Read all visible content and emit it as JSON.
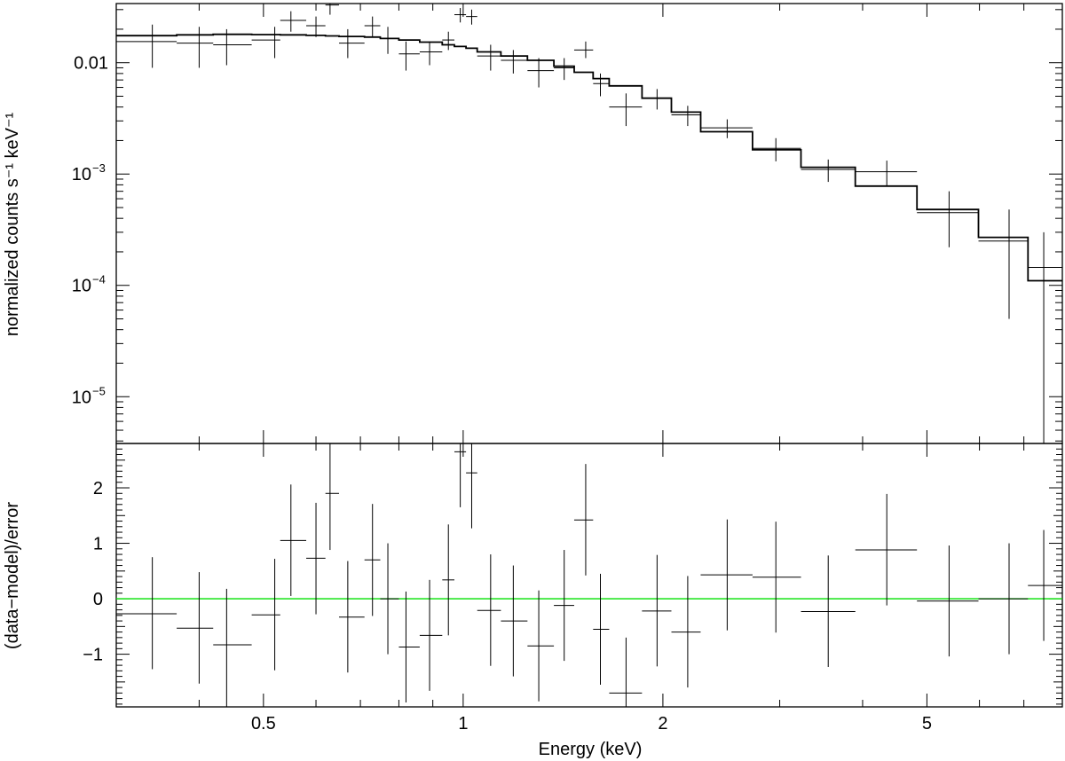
{
  "chart_data": [
    {
      "type": "scatter",
      "panel": "spectrum",
      "xlabel": "Energy (keV)",
      "ylabel": "normalized counts s⁻¹ keV⁻¹",
      "xscale": "log",
      "yscale": "log",
      "xlim": [
        0.3,
        8.0
      ],
      "ylim": [
        3.8e-06,
        0.034
      ],
      "yticks": [
        {
          "value": 0.01,
          "label": "0.01",
          "exp": ""
        },
        {
          "value": 0.001,
          "label": "10",
          "exp": "−3"
        },
        {
          "value": 0.0001,
          "label": "10",
          "exp": "−4"
        },
        {
          "value": 1e-05,
          "label": "10",
          "exp": "−5"
        }
      ],
      "series": [
        {
          "name": "",
          "kind": "data",
          "color": "#000000",
          "points": [
            {
              "x": 0.34,
              "xlo": 0.3,
              "xhi": 0.37,
              "y": 0.0155,
              "ylo": 0.009,
              "yhi": 0.022
            },
            {
              "x": 0.4,
              "xlo": 0.37,
              "xhi": 0.42,
              "y": 0.015,
              "ylo": 0.009,
              "yhi": 0.021
            },
            {
              "x": 0.44,
              "xlo": 0.42,
              "xhi": 0.48,
              "y": 0.0145,
              "ylo": 0.0095,
              "yhi": 0.02
            },
            {
              "x": 0.52,
              "xlo": 0.48,
              "xhi": 0.53,
              "y": 0.016,
              "ylo": 0.011,
              "yhi": 0.021
            },
            {
              "x": 0.55,
              "xlo": 0.53,
              "xhi": 0.58,
              "y": 0.024,
              "ylo": 0.019,
              "yhi": 0.029
            },
            {
              "x": 0.6,
              "xlo": 0.58,
              "xhi": 0.62,
              "y": 0.0215,
              "ylo": 0.017,
              "yhi": 0.026
            },
            {
              "x": 0.63,
              "xlo": 0.62,
              "xhi": 0.65,
              "y": 0.033,
              "ylo": 0.027,
              "yhi": 0.04
            },
            {
              "x": 0.67,
              "xlo": 0.65,
              "xhi": 0.71,
              "y": 0.015,
              "ylo": 0.011,
              "yhi": 0.02
            },
            {
              "x": 0.73,
              "xlo": 0.71,
              "xhi": 0.75,
              "y": 0.0215,
              "ylo": 0.017,
              "yhi": 0.026
            },
            {
              "x": 0.77,
              "xlo": 0.75,
              "xhi": 0.8,
              "y": 0.0165,
              "ylo": 0.012,
              "yhi": 0.021
            },
            {
              "x": 0.82,
              "xlo": 0.8,
              "xhi": 0.86,
              "y": 0.012,
              "ylo": 0.0085,
              "yhi": 0.0155
            },
            {
              "x": 0.89,
              "xlo": 0.86,
              "xhi": 0.93,
              "y": 0.0125,
              "ylo": 0.0095,
              "yhi": 0.0155
            },
            {
              "x": 0.95,
              "xlo": 0.93,
              "xhi": 0.97,
              "y": 0.016,
              "ylo": 0.013,
              "yhi": 0.019
            },
            {
              "x": 0.99,
              "xlo": 0.97,
              "xhi": 1.01,
              "y": 0.027,
              "ylo": 0.023,
              "yhi": 0.031
            },
            {
              "x": 1.03,
              "xlo": 1.01,
              "xhi": 1.05,
              "y": 0.026,
              "ylo": 0.022,
              "yhi": 0.03
            },
            {
              "x": 1.1,
              "xlo": 1.05,
              "xhi": 1.14,
              "y": 0.0115,
              "ylo": 0.0085,
              "yhi": 0.0145
            },
            {
              "x": 1.19,
              "xlo": 1.14,
              "xhi": 1.25,
              "y": 0.0105,
              "ylo": 0.008,
              "yhi": 0.013
            },
            {
              "x": 1.3,
              "xlo": 1.25,
              "xhi": 1.37,
              "y": 0.0085,
              "ylo": 0.006,
              "yhi": 0.011
            },
            {
              "x": 1.42,
              "xlo": 1.37,
              "xhi": 1.47,
              "y": 0.009,
              "ylo": 0.007,
              "yhi": 0.011
            },
            {
              "x": 1.53,
              "xlo": 1.47,
              "xhi": 1.57,
              "y": 0.013,
              "ylo": 0.011,
              "yhi": 0.0155
            },
            {
              "x": 1.61,
              "xlo": 1.57,
              "xhi": 1.66,
              "y": 0.0065,
              "ylo": 0.005,
              "yhi": 0.008
            },
            {
              "x": 1.76,
              "xlo": 1.66,
              "xhi": 1.86,
              "y": 0.004,
              "ylo": 0.0027,
              "yhi": 0.0053
            },
            {
              "x": 1.96,
              "xlo": 1.86,
              "xhi": 2.06,
              "y": 0.0048,
              "ylo": 0.0038,
              "yhi": 0.0058
            },
            {
              "x": 2.18,
              "xlo": 2.06,
              "xhi": 2.28,
              "y": 0.0034,
              "ylo": 0.0027,
              "yhi": 0.0041
            },
            {
              "x": 2.5,
              "xlo": 2.28,
              "xhi": 2.73,
              "y": 0.0026,
              "ylo": 0.0021,
              "yhi": 0.0031
            },
            {
              "x": 2.96,
              "xlo": 2.73,
              "xhi": 3.23,
              "y": 0.0017,
              "ylo": 0.0013,
              "yhi": 0.0021
            },
            {
              "x": 3.55,
              "xlo": 3.23,
              "xhi": 3.9,
              "y": 0.0011,
              "ylo": 0.00085,
              "yhi": 0.00135
            },
            {
              "x": 4.35,
              "xlo": 3.9,
              "xhi": 4.83,
              "y": 0.00105,
              "ylo": 0.00078,
              "yhi": 0.00132
            },
            {
              "x": 5.4,
              "xlo": 4.83,
              "xhi": 5.98,
              "y": 0.00045,
              "ylo": 0.00022,
              "yhi": 0.0007
            },
            {
              "x": 6.65,
              "xlo": 5.98,
              "xhi": 7.1,
              "y": 0.00025,
              "ylo": 5e-05,
              "yhi": 0.00048
            },
            {
              "x": 7.5,
              "xlo": 7.1,
              "xhi": 8.0,
              "y": 0.000145,
              "ylo": 3.8e-06,
              "yhi": 0.0003
            }
          ]
        },
        {
          "name": "",
          "kind": "model-step",
          "color": "#000000",
          "edges": [
            0.3,
            0.37,
            0.42,
            0.48,
            0.53,
            0.58,
            0.62,
            0.65,
            0.71,
            0.75,
            0.8,
            0.86,
            0.93,
            0.97,
            1.01,
            1.05,
            1.14,
            1.25,
            1.37,
            1.47,
            1.57,
            1.66,
            1.86,
            2.06,
            2.28,
            2.73,
            3.23,
            3.9,
            4.83,
            5.98,
            7.1,
            8.0
          ],
          "values": [
            0.0175,
            0.0178,
            0.018,
            0.0179,
            0.0178,
            0.0176,
            0.0174,
            0.0172,
            0.017,
            0.0165,
            0.016,
            0.0153,
            0.0145,
            0.014,
            0.0135,
            0.0125,
            0.0115,
            0.0105,
            0.0093,
            0.0082,
            0.0072,
            0.0062,
            0.0048,
            0.0036,
            0.0024,
            0.00165,
            0.00115,
            0.00078,
            0.00048,
            0.00027,
            0.00011
          ]
        }
      ]
    },
    {
      "type": "scatter",
      "panel": "residuals",
      "xlabel": "Energy (keV)",
      "ylabel": "(data−model)/error",
      "xscale": "log",
      "xlim": [
        0.3,
        8.0
      ],
      "ylim": [
        -1.95,
        2.8
      ],
      "xticks": [
        {
          "value": 0.5,
          "label": "0.5"
        },
        {
          "value": 1,
          "label": "1"
        },
        {
          "value": 2,
          "label": "2"
        },
        {
          "value": 5,
          "label": "5"
        }
      ],
      "yticks": [
        {
          "value": 2,
          "label": "2"
        },
        {
          "value": 1,
          "label": "1"
        },
        {
          "value": 0,
          "label": "0"
        },
        {
          "value": -1,
          "label": "−1"
        }
      ],
      "reference_line": {
        "y": 0,
        "color": "#00e000"
      },
      "series": [
        {
          "name": "",
          "kind": "residuals",
          "color": "#000000",
          "points": [
            {
              "x": 0.34,
              "xlo": 0.3,
              "xhi": 0.37,
              "y": -0.27,
              "ylo": -1.27,
              "yhi": 0.75
            },
            {
              "x": 0.4,
              "xlo": 0.37,
              "xhi": 0.42,
              "y": -0.53,
              "ylo": -1.53,
              "yhi": 0.48
            },
            {
              "x": 0.44,
              "xlo": 0.42,
              "xhi": 0.48,
              "y": -0.83,
              "ylo": -1.95,
              "yhi": 0.18
            },
            {
              "x": 0.52,
              "xlo": 0.48,
              "xhi": 0.53,
              "y": -0.29,
              "ylo": -1.29,
              "yhi": 0.72
            },
            {
              "x": 0.55,
              "xlo": 0.53,
              "xhi": 0.58,
              "y": 1.05,
              "ylo": 0.05,
              "yhi": 2.06
            },
            {
              "x": 0.6,
              "xlo": 0.58,
              "xhi": 0.62,
              "y": 0.73,
              "ylo": -0.28,
              "yhi": 1.73
            },
            {
              "x": 0.63,
              "xlo": 0.62,
              "xhi": 0.65,
              "y": 1.9,
              "ylo": 0.88,
              "yhi": 2.8
            },
            {
              "x": 0.67,
              "xlo": 0.65,
              "xhi": 0.71,
              "y": -0.33,
              "ylo": -1.33,
              "yhi": 0.68
            },
            {
              "x": 0.73,
              "xlo": 0.71,
              "xhi": 0.75,
              "y": 0.7,
              "ylo": -0.31,
              "yhi": 1.71
            },
            {
              "x": 0.77,
              "xlo": 0.75,
              "xhi": 0.8,
              "y": 0.0,
              "ylo": -1.0,
              "yhi": 1.0
            },
            {
              "x": 0.82,
              "xlo": 0.8,
              "xhi": 0.86,
              "y": -0.87,
              "ylo": -1.87,
              "yhi": 0.13
            },
            {
              "x": 0.89,
              "xlo": 0.86,
              "xhi": 0.93,
              "y": -0.66,
              "ylo": -1.66,
              "yhi": 0.34
            },
            {
              "x": 0.95,
              "xlo": 0.93,
              "xhi": 0.97,
              "y": 0.34,
              "ylo": -0.66,
              "yhi": 1.34
            },
            {
              "x": 0.99,
              "xlo": 0.97,
              "xhi": 1.01,
              "y": 2.65,
              "ylo": 1.65,
              "yhi": 2.8
            },
            {
              "x": 1.03,
              "xlo": 1.01,
              "xhi": 1.05,
              "y": 2.27,
              "ylo": 1.27,
              "yhi": 2.8
            },
            {
              "x": 1.1,
              "xlo": 1.05,
              "xhi": 1.14,
              "y": -0.21,
              "ylo": -1.21,
              "yhi": 0.8
            },
            {
              "x": 1.19,
              "xlo": 1.14,
              "xhi": 1.25,
              "y": -0.4,
              "ylo": -1.4,
              "yhi": 0.6
            },
            {
              "x": 1.3,
              "xlo": 1.25,
              "xhi": 1.37,
              "y": -0.85,
              "ylo": -1.85,
              "yhi": 0.15
            },
            {
              "x": 1.42,
              "xlo": 1.37,
              "xhi": 1.47,
              "y": -0.12,
              "ylo": -1.12,
              "yhi": 0.88
            },
            {
              "x": 1.53,
              "xlo": 1.47,
              "xhi": 1.57,
              "y": 1.42,
              "ylo": 0.42,
              "yhi": 2.43
            },
            {
              "x": 1.61,
              "xlo": 1.57,
              "xhi": 1.66,
              "y": -0.55,
              "ylo": -1.55,
              "yhi": 0.45
            },
            {
              "x": 1.76,
              "xlo": 1.66,
              "xhi": 1.86,
              "y": -1.7,
              "ylo": -1.95,
              "yhi": -0.7
            },
            {
              "x": 1.96,
              "xlo": 1.86,
              "xhi": 2.06,
              "y": -0.22,
              "ylo": -1.22,
              "yhi": 0.79
            },
            {
              "x": 2.18,
              "xlo": 2.06,
              "xhi": 2.28,
              "y": -0.6,
              "ylo": -1.6,
              "yhi": 0.41
            },
            {
              "x": 2.5,
              "xlo": 2.28,
              "xhi": 2.73,
              "y": 0.43,
              "ylo": -0.57,
              "yhi": 1.43
            },
            {
              "x": 2.96,
              "xlo": 2.73,
              "xhi": 3.23,
              "y": 0.39,
              "ylo": -0.61,
              "yhi": 1.39
            },
            {
              "x": 3.55,
              "xlo": 3.23,
              "xhi": 3.9,
              "y": -0.23,
              "ylo": -1.23,
              "yhi": 0.78
            },
            {
              "x": 4.35,
              "xlo": 3.9,
              "xhi": 4.83,
              "y": 0.88,
              "ylo": -0.12,
              "yhi": 1.89
            },
            {
              "x": 5.4,
              "xlo": 4.83,
              "xhi": 5.98,
              "y": -0.04,
              "ylo": -1.04,
              "yhi": 0.96
            },
            {
              "x": 6.65,
              "xlo": 5.98,
              "xhi": 7.1,
              "y": 0.0,
              "ylo": -1.0,
              "yhi": 1.0
            },
            {
              "x": 7.5,
              "xlo": 7.1,
              "xhi": 8.0,
              "y": 0.24,
              "ylo": -0.76,
              "yhi": 1.24
            }
          ]
        }
      ]
    }
  ]
}
